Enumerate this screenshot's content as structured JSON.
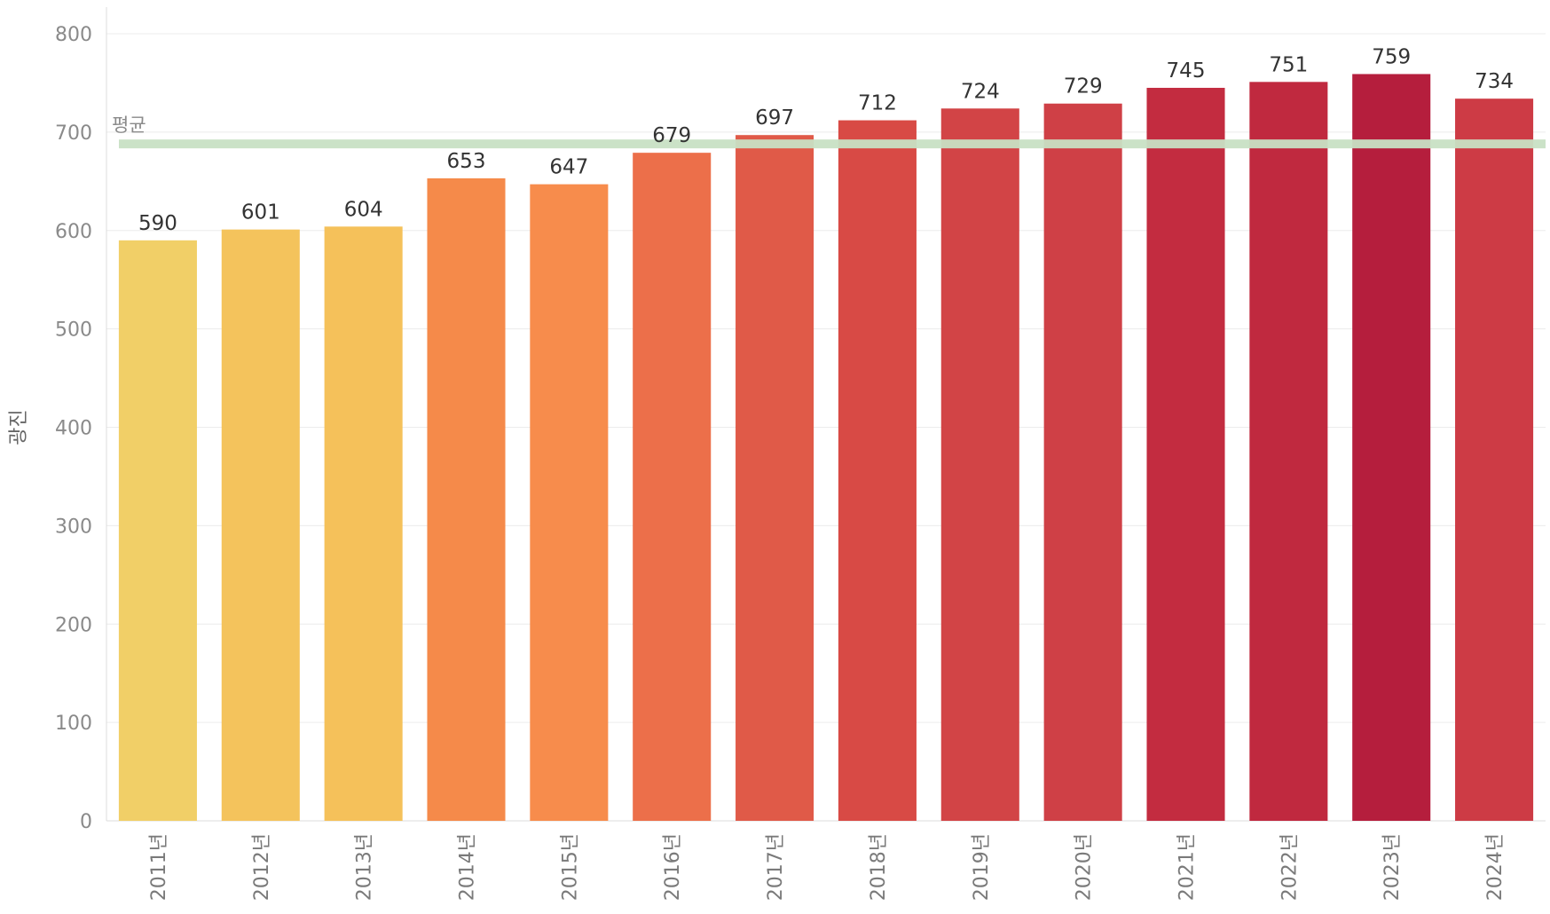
{
  "chart_data": {
    "type": "bar",
    "title": "",
    "xlabel": "",
    "ylabel": "광진",
    "ylim": [
      0,
      800
    ],
    "yticks": [
      0,
      100,
      200,
      300,
      400,
      500,
      600,
      700,
      800
    ],
    "categories": [
      "2011년",
      "2012년",
      "2013년",
      "2014년",
      "2015년",
      "2016년",
      "2017년",
      "2018년",
      "2019년",
      "2020년",
      "2021년",
      "2022년",
      "2023년",
      "2024년"
    ],
    "values": [
      590,
      601,
      604,
      653,
      647,
      679,
      697,
      712,
      724,
      729,
      745,
      751,
      759,
      734
    ],
    "bar_colors": [
      "#f1cf67",
      "#f4c35c",
      "#f5c15a",
      "#f58a4a",
      "#f78c4c",
      "#ec6f4a",
      "#e05a48",
      "#d84a45",
      "#d24446",
      "#cf4046",
      "#c32c40",
      "#c0293f",
      "#b51e3d",
      "#cd3b45"
    ],
    "reference_line": {
      "label": "평균",
      "value": 688,
      "color": "#c8e0c4"
    },
    "grid": true
  }
}
